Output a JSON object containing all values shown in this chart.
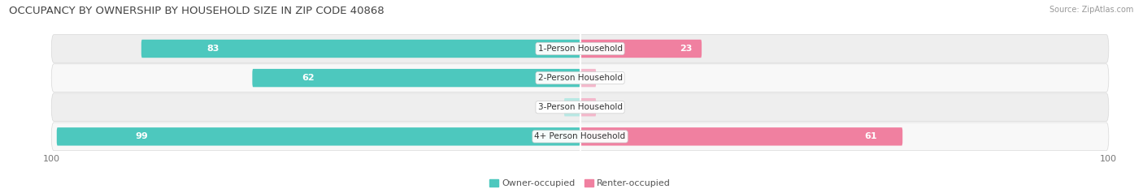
{
  "title": "OCCUPANCY BY OWNERSHIP BY HOUSEHOLD SIZE IN ZIP CODE 40868",
  "source": "Source: ZipAtlas.com",
  "categories": [
    "1-Person Household",
    "2-Person Household",
    "3-Person Household",
    "4+ Person Household"
  ],
  "owner_values": [
    83,
    62,
    0,
    99
  ],
  "renter_values": [
    23,
    0,
    0,
    61
  ],
  "owner_color": "#4DC8BE",
  "renter_color": "#F080A0",
  "label_color_owner": "#ffffff",
  "label_color_renter": "#ffffff",
  "axis_max": 100,
  "bar_height": 0.62,
  "title_fontsize": 9.5,
  "source_fontsize": 7,
  "label_fontsize": 8,
  "category_fontsize": 7.5,
  "tick_fontsize": 8,
  "legend_fontsize": 8,
  "background_color": "#ffffff",
  "row_bg_color_light": "#efefef",
  "row_bg_color_dark": "#e2e2e2",
  "zero_bar_color": "#b8e8e4"
}
